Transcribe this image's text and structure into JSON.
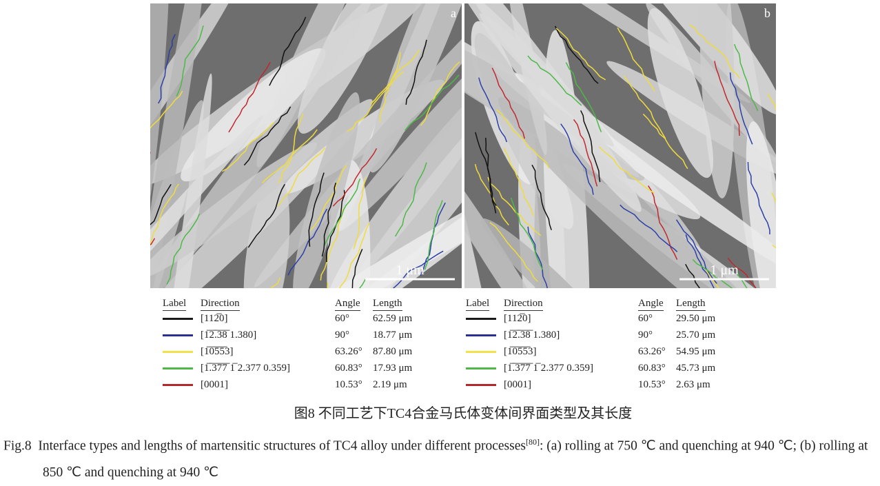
{
  "figure": {
    "panels": [
      {
        "letter": "a",
        "scale": "1 μm",
        "table": {
          "headers": [
            "Label",
            "Direction",
            "Angle",
            "Length"
          ],
          "rows": [
            {
              "color": "#1a1a1a",
              "direction": "[112̅0]",
              "angle": "60°",
              "length": "62.59 μm"
            },
            {
              "color": "#2b2f8f",
              "direction": "[1̅2̅.̅3̅8̅ 1.380]",
              "angle": "90°",
              "length": "18.77 μm"
            },
            {
              "color": "#f2e24a",
              "direction": "[1̅0̅5̅5̅3]",
              "angle": "63.26°",
              "length": "87.80 μm"
            },
            {
              "color": "#4db848",
              "direction": "[1̅.̅3̅7̅7̅ 1̅ 2.377 0.359]",
              "angle": "60.83°",
              "length": "17.93 μm"
            },
            {
              "color": "#b3282d",
              "direction": "[0001]",
              "angle": "10.53°",
              "length": "2.19 μm"
            }
          ]
        }
      },
      {
        "letter": "b",
        "scale": "1 μm",
        "table": {
          "headers": [
            "Label",
            "Direction",
            "Angle",
            "Length"
          ],
          "rows": [
            {
              "color": "#1a1a1a",
              "direction": "[112̅0]",
              "angle": "60°",
              "length": "29.50 μm"
            },
            {
              "color": "#2b2f8f",
              "direction": "[1̅2̅.̅3̅8̅ 1.380]",
              "angle": "90°",
              "length": "25.70 μm"
            },
            {
              "color": "#f2e24a",
              "direction": "[1̅0̅5̅5̅3]",
              "angle": "63.26°",
              "length": "54.95 μm"
            },
            {
              "color": "#4db848",
              "direction": "[1̅.̅3̅7̅7̅ 1̅ 2.377 0.359]",
              "angle": "60.83°",
              "length": "45.73 μm"
            },
            {
              "color": "#b3282d",
              "direction": "[0001]",
              "angle": "10.53°",
              "length": "2.63 μm"
            }
          ]
        }
      }
    ],
    "caption_cn": "图8  不同工艺下TC4合金马氏体变体间界面类型及其长度",
    "caption_en": {
      "label": "Fig.8",
      "text": "Interface types and lengths of martensitic structures of TC4 alloy under different processes",
      "ref": "[80]",
      "rest": ": (a) rolling at 750 ℃ and quenching at 940 ℃; (b) rolling at 850 ℃ and quenching at 940 ℃"
    }
  }
}
